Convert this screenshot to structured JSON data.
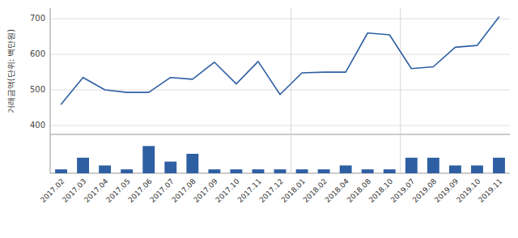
{
  "chart_data": [
    {
      "type": "line",
      "ylabel": "거래금액(단위: 백만원)",
      "categories": [
        "2017.02",
        "2017.03",
        "2017.04",
        "2017.05",
        "2017.06",
        "2017.07",
        "2017.08",
        "2017.09",
        "2017.10",
        "2017.11",
        "2017.12",
        "2018.01",
        "2018.02",
        "2018.04",
        "2018.08",
        "2018.10",
        "2019.07",
        "2019.08",
        "2019.09",
        "2019.10",
        "2019.11"
      ],
      "values": [
        460,
        535,
        500,
        493,
        493,
        535,
        530,
        578,
        517,
        580,
        487,
        548,
        550,
        550,
        660,
        655,
        560,
        565,
        620,
        625,
        705
      ],
      "color": "#2e5fa3",
      "ylim": [
        375,
        730
      ],
      "yticks": [
        400,
        500,
        600,
        700
      ],
      "grid": true,
      "tick_labels": "y",
      "vlines": [
        10.5,
        15.5
      ]
    },
    {
      "type": "bar",
      "categories": [
        "2017.02",
        "2017.03",
        "2017.04",
        "2017.05",
        "2017.06",
        "2017.07",
        "2017.08",
        "2017.09",
        "2017.10",
        "2017.11",
        "2017.12",
        "2018.01",
        "2018.02",
        "2018.04",
        "2018.08",
        "2018.10",
        "2019.07",
        "2019.08",
        "2019.09",
        "2019.10",
        "2019.11"
      ],
      "values": [
        1,
        4,
        2,
        1,
        7,
        3,
        5,
        1,
        1,
        1,
        1,
        1,
        1,
        2,
        1,
        1,
        4,
        4,
        2,
        2,
        4
      ],
      "color": "#2e5fa3",
      "ylim": [
        0,
        10
      ],
      "tick_labels": "x",
      "vlines": [
        10.5,
        15.5
      ]
    }
  ]
}
